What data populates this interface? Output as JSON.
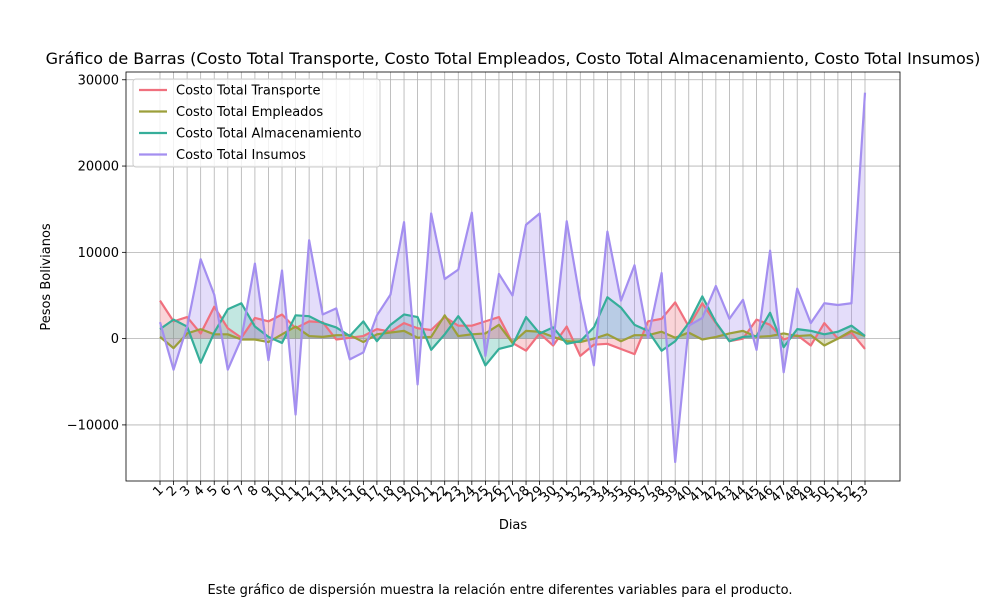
{
  "chart_data": {
    "type": "line",
    "title": "Gráfico de Barras (Costo Total Transporte, Costo Total Empleados, Costo Total Almacenamiento, Costo Total Insumos)",
    "xlabel": "Dias",
    "ylabel": "Pesos Bolivianos",
    "ylim": [
      -16500,
      30900
    ],
    "yticks": [
      -10000,
      0,
      10000,
      20000,
      30000
    ],
    "grid": true,
    "legend_position": "top-left",
    "x": [
      1,
      2,
      3,
      4,
      5,
      6,
      7,
      8,
      9,
      10,
      11,
      12,
      13,
      14,
      15,
      16,
      17,
      18,
      19,
      20,
      21,
      22,
      23,
      24,
      25,
      26,
      27,
      28,
      29,
      30,
      31,
      32,
      33,
      34,
      35,
      36,
      37,
      38,
      39,
      40,
      41,
      42,
      43,
      44,
      45,
      46,
      47,
      48,
      49,
      50,
      51,
      52,
      53
    ],
    "series": [
      {
        "name": "Costo Total Transporte",
        "color": "#f0707e",
        "values": [
          4400,
          2000,
          2500,
          600,
          3700,
          1200,
          100,
          2400,
          2000,
          2800,
          1200,
          2000,
          1900,
          -100,
          100,
          300,
          1100,
          800,
          1800,
          1200,
          1000,
          2500,
          1500,
          1500,
          2000,
          2500,
          -500,
          -1400,
          600,
          -800,
          1400,
          -2000,
          -700,
          -600,
          -1200,
          -1800,
          2000,
          2300,
          4200,
          1400,
          4100,
          1800,
          -300,
          0,
          2200,
          1600,
          -100,
          400,
          -800,
          1800,
          0,
          700,
          -1200
        ]
      },
      {
        "name": "Costo Total Empleados",
        "color": "#9c9f3a",
        "values": [
          200,
          -1100,
          600,
          1100,
          500,
          500,
          -100,
          -100,
          -400,
          500,
          1400,
          300,
          200,
          400,
          400,
          -400,
          500,
          700,
          900,
          100,
          200,
          2700,
          300,
          500,
          600,
          1600,
          -500,
          900,
          800,
          200,
          -300,
          -400,
          0,
          500,
          -300,
          400,
          400,
          800,
          100,
          700,
          -100,
          200,
          600,
          900,
          200,
          300,
          600,
          300,
          400,
          -800,
          0,
          900,
          300
        ]
      },
      {
        "name": "Costo Total Almacenamiento",
        "color": "#36ae9a",
        "values": [
          1100,
          2200,
          1400,
          -2800,
          700,
          3400,
          4100,
          1400,
          200,
          -500,
          2700,
          2600,
          1800,
          1300,
          300,
          2000,
          -300,
          1600,
          2800,
          2500,
          -1300,
          500,
          2600,
          500,
          -3100,
          -1200,
          -800,
          2500,
          600,
          1300,
          -600,
          -300,
          1300,
          4800,
          3600,
          1600,
          900,
          -1400,
          -300,
          1800,
          4900,
          1900,
          -300,
          200,
          300,
          3000,
          -1000,
          1100,
          900,
          500,
          800,
          1500,
          300
        ]
      },
      {
        "name": "Costo Total Insumos",
        "color": "#a48ff0",
        "values": [
          1900,
          -3600,
          1400,
          9200,
          5100,
          -3600,
          0,
          8700,
          -2500,
          7900,
          -8800,
          11400,
          2800,
          3500,
          -2400,
          -1600,
          2700,
          5100,
          13500,
          -5300,
          14500,
          6900,
          8000,
          14600,
          -2000,
          7500,
          5000,
          13200,
          14500,
          -600,
          13600,
          4400,
          -3100,
          12400,
          4400,
          8500,
          100,
          7600,
          -14300,
          1500,
          2400,
          6100,
          2300,
          4500,
          -1300,
          10200,
          -3900,
          5800,
          1800,
          4100,
          3900,
          4100,
          28500
        ]
      }
    ]
  },
  "caption": "Este gráfico de dispersión muestra la relación entre diferentes variables para el producto."
}
